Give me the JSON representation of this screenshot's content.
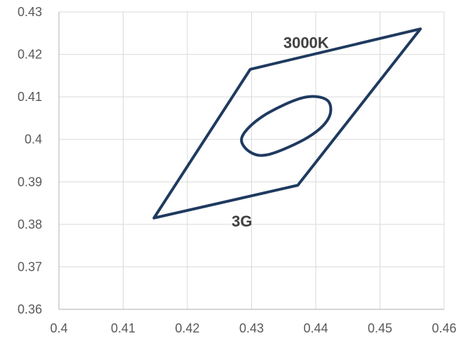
{
  "chart_data": {
    "type": "line",
    "title": "",
    "xlabel": "",
    "ylabel": "",
    "xlim": [
      0.4,
      0.46
    ],
    "ylim": [
      0.36,
      0.43
    ],
    "x_ticks": [
      0.4,
      0.41,
      0.42,
      0.43,
      0.44,
      0.45,
      0.46
    ],
    "x_tick_labels": [
      "0.4",
      "0.41",
      "0.42",
      "0.43",
      "0.44",
      "0.45",
      "0.46"
    ],
    "y_ticks": [
      0.36,
      0.37,
      0.38,
      0.39,
      0.4,
      0.41,
      0.42,
      0.43
    ],
    "y_tick_labels": [
      "0.36",
      "0.37",
      "0.38",
      "0.39",
      "0.4",
      "0.41",
      "0.42",
      "0.43"
    ],
    "grid": true,
    "legend": "none",
    "series_color": "#1f3a5f",
    "series": [
      {
        "closed": true,
        "points": [
          [
            0.4148,
            0.3815
          ],
          [
            0.4298,
            0.4165
          ],
          [
            0.4563,
            0.426
          ],
          [
            0.4372,
            0.3892
          ]
        ]
      },
      {
        "shape": "ellipse",
        "center": [
          0.4332,
          0.403
        ],
        "semi_axes": [
          0.0062,
          0.0062
        ],
        "points": [
          [
            0.4298,
            0.397
          ],
          [
            0.4285,
            0.4005
          ],
          [
            0.4318,
            0.4055
          ],
          [
            0.438,
            0.4098
          ],
          [
            0.4418,
            0.4092
          ],
          [
            0.442,
            0.405
          ],
          [
            0.4388,
            0.4005
          ],
          [
            0.4328,
            0.3965
          ]
        ]
      }
    ],
    "annotations": [
      {
        "text": "3000K",
        "x": 0.4385,
        "y": 0.4215
      },
      {
        "text": "3G",
        "x": 0.4285,
        "y": 0.3795
      }
    ]
  }
}
